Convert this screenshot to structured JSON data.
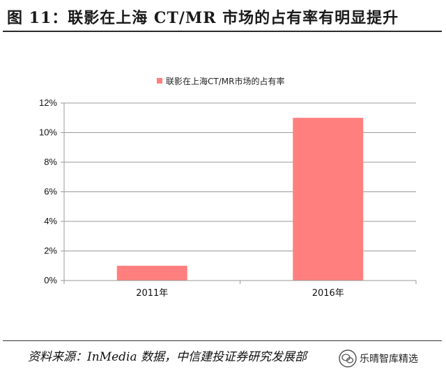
{
  "figure": {
    "title": "图  11：联影在上海 CT/MR 市场的占有率有明显提升",
    "source": "资料来源：InMedia 数据，中信建投证券研究发展部",
    "watermark": "乐晴智库精选"
  },
  "colors": {
    "bar": "#ff7f7f",
    "axis": "#9a9a9a",
    "grid": "#9a9a9a"
  },
  "chart_data": {
    "type": "bar",
    "categories": [
      "2011年",
      "2016年"
    ],
    "series": [
      {
        "name": "联影在上海CT/MR市场的占有率",
        "values": [
          1,
          11
        ]
      }
    ],
    "ylim": [
      0,
      12
    ],
    "yticks": [
      0,
      2,
      4,
      6,
      8,
      10,
      12
    ],
    "ytick_labels": [
      "0%",
      "2%",
      "4%",
      "6%",
      "8%",
      "10%",
      "12%"
    ],
    "grid": true,
    "legend_position": "top"
  }
}
